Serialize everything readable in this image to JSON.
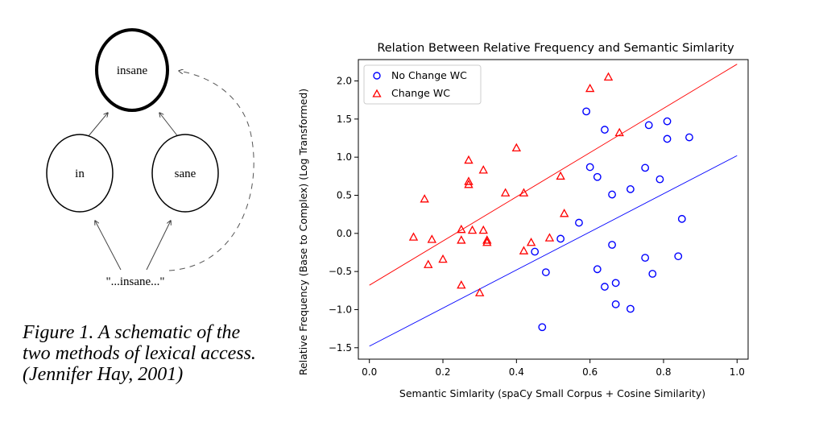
{
  "diagram": {
    "nodes": {
      "top": "insane",
      "left": "in",
      "right": "sane",
      "bottom": "\"...insane...\""
    }
  },
  "caption": "Figure 1. A schematic of the two methods of lexical access.(Jennifer Hay, 2001)",
  "colors": {
    "no_change": "#0000ff",
    "change": "#ff0000"
  },
  "chart_data": {
    "type": "scatter",
    "title": "Relation Between Relative Frequency and Semantic Simlarity",
    "xlabel": "Semantic Simlarity (spaCy Small Corpus + Cosine Similarity)",
    "ylabel": "Relative Frequency (Base to Complex) (Log Transformed)",
    "xlim": [
      -0.03,
      1.03
    ],
    "ylim": [
      -1.65,
      2.28
    ],
    "xticks": [
      0.0,
      0.2,
      0.4,
      0.6,
      0.8,
      1.0
    ],
    "xtick_labels": [
      "0.0",
      "0.2",
      "0.4",
      "0.6",
      "0.8",
      "1.0"
    ],
    "yticks": [
      -1.5,
      -1.0,
      -0.5,
      0.0,
      0.5,
      1.0,
      1.5,
      2.0
    ],
    "ytick_labels": [
      "−1.5",
      "−1.0",
      "−0.5",
      "0.0",
      "0.5",
      "1.0",
      "1.5",
      "2.0"
    ],
    "legend": {
      "position": "top-left"
    },
    "series": [
      {
        "name": "No Change WC",
        "marker": "circle",
        "color": "#0000ff",
        "points": [
          [
            0.59,
            1.6
          ],
          [
            0.64,
            1.36
          ],
          [
            0.76,
            1.42
          ],
          [
            0.81,
            1.47
          ],
          [
            0.87,
            1.26
          ],
          [
            0.81,
            1.24
          ],
          [
            0.6,
            0.87
          ],
          [
            0.62,
            0.74
          ],
          [
            0.75,
            0.86
          ],
          [
            0.79,
            0.71
          ],
          [
            0.71,
            0.58
          ],
          [
            0.66,
            0.51
          ],
          [
            0.85,
            0.19
          ],
          [
            0.57,
            0.14
          ],
          [
            0.52,
            -0.07
          ],
          [
            0.45,
            -0.24
          ],
          [
            0.66,
            -0.15
          ],
          [
            0.75,
            -0.32
          ],
          [
            0.84,
            -0.3
          ],
          [
            0.48,
            -0.51
          ],
          [
            0.62,
            -0.47
          ],
          [
            0.77,
            -0.53
          ],
          [
            0.64,
            -0.7
          ],
          [
            0.67,
            -0.65
          ],
          [
            0.67,
            -0.93
          ],
          [
            0.71,
            -0.99
          ],
          [
            0.47,
            -1.23
          ]
        ],
        "fit": {
          "intercept": -1.48,
          "slope": 2.5
        }
      },
      {
        "name": "Change WC",
        "marker": "triangle",
        "color": "#ff0000",
        "points": [
          [
            0.65,
            2.05
          ],
          [
            0.6,
            1.9
          ],
          [
            0.68,
            1.32
          ],
          [
            0.4,
            1.12
          ],
          [
            0.27,
            0.96
          ],
          [
            0.31,
            0.83
          ],
          [
            0.27,
            0.68
          ],
          [
            0.27,
            0.64
          ],
          [
            0.37,
            0.53
          ],
          [
            0.42,
            0.53
          ],
          [
            0.52,
            0.75
          ],
          [
            0.15,
            0.45
          ],
          [
            0.53,
            0.26
          ],
          [
            0.25,
            0.05
          ],
          [
            0.28,
            0.04
          ],
          [
            0.31,
            0.04
          ],
          [
            0.12,
            -0.05
          ],
          [
            0.17,
            -0.08
          ],
          [
            0.25,
            -0.09
          ],
          [
            0.32,
            -0.09
          ],
          [
            0.32,
            -0.12
          ],
          [
            0.44,
            -0.12
          ],
          [
            0.49,
            -0.06
          ],
          [
            0.42,
            -0.23
          ],
          [
            0.2,
            -0.34
          ],
          [
            0.16,
            -0.41
          ],
          [
            0.25,
            -0.68
          ],
          [
            0.3,
            -0.78
          ]
        ],
        "fit": {
          "intercept": -0.68,
          "slope": 2.9
        }
      }
    ]
  }
}
